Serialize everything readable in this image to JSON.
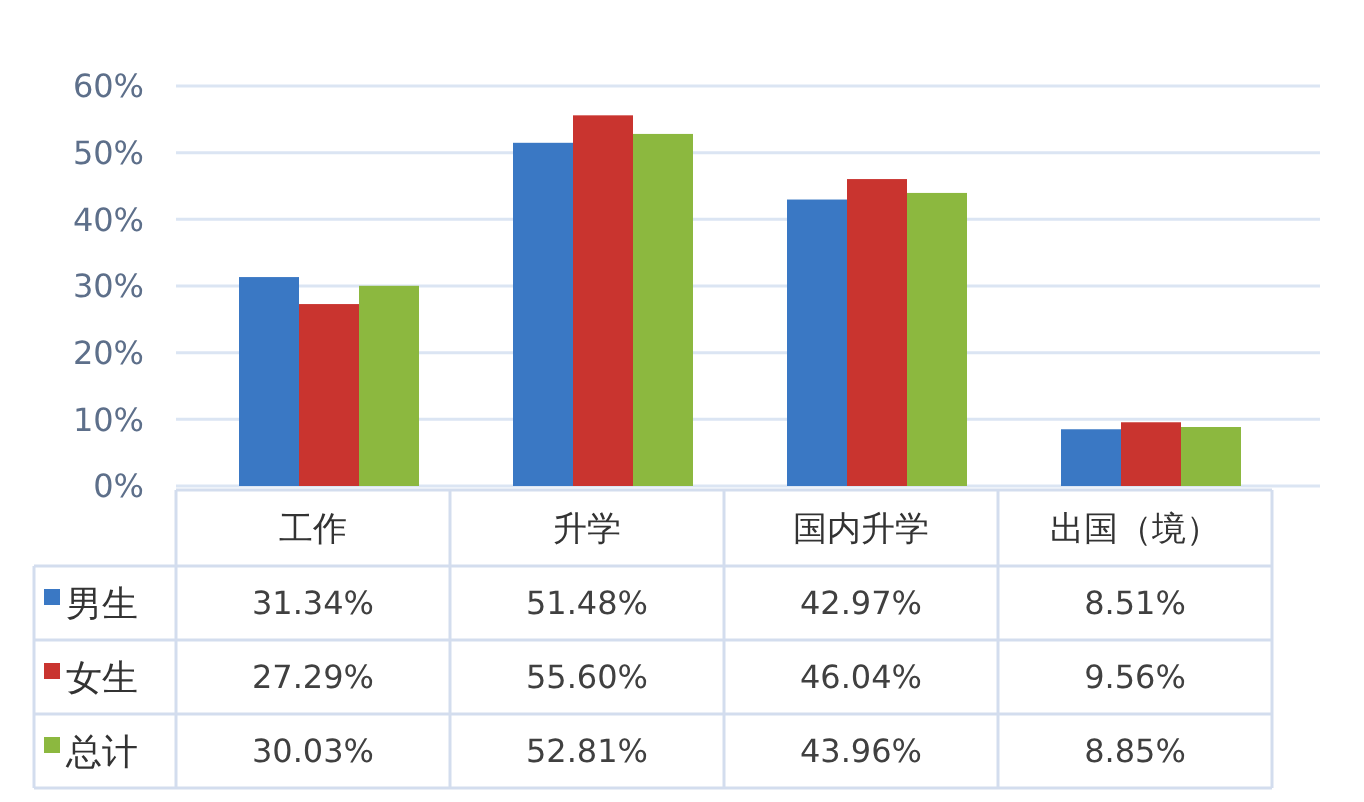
{
  "chart_data": {
    "type": "bar",
    "categories": [
      "工作",
      "升学",
      "国内升学",
      "出国（境）"
    ],
    "series": [
      {
        "name": "男生",
        "color": "#3a78c4",
        "values": [
          31.34,
          51.48,
          42.97,
          8.51
        ],
        "value_labels": [
          "31.34%",
          "51.48%",
          "42.97%",
          "8.51%"
        ]
      },
      {
        "name": "女生",
        "color": "#c9342f",
        "values": [
          27.29,
          55.6,
          46.04,
          9.56
        ],
        "value_labels": [
          "27.29%",
          "55.60%",
          "46.04%",
          "9.56%"
        ]
      },
      {
        "name": "总计",
        "color": "#8cb83f",
        "values": [
          30.03,
          52.81,
          43.96,
          8.85
        ],
        "value_labels": [
          "30.03%",
          "52.81%",
          "43.96%",
          "8.85%"
        ]
      }
    ],
    "ylim": [
      0,
      60
    ],
    "yticks": [
      {
        "value": 0,
        "label": "0%"
      },
      {
        "value": 10,
        "label": "10%"
      },
      {
        "value": 20,
        "label": "20%"
      },
      {
        "value": 30,
        "label": "30%"
      },
      {
        "value": 40,
        "label": "40%"
      },
      {
        "value": 50,
        "label": "50%"
      },
      {
        "value": 60,
        "label": "60%"
      }
    ],
    "grid": "y",
    "legend": "bottom"
  }
}
